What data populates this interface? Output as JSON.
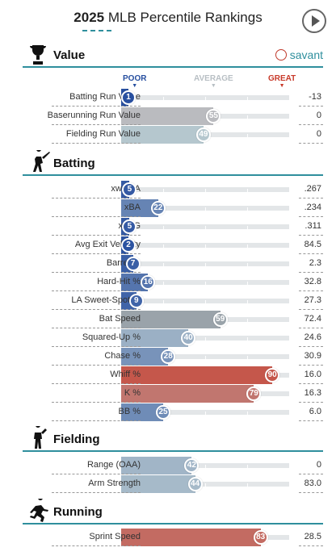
{
  "header": {
    "year": "2025",
    "title": "MLB Percentile Rankings"
  },
  "legend": {
    "poor": "POOR",
    "average": "AVERAGE",
    "great": "GREAT"
  },
  "brand": {
    "name": "savant"
  },
  "colors": {
    "accent": "#2f8f9d",
    "poor": "#264e9f",
    "average": "#9aa3aa",
    "great": "#c83a2a"
  },
  "sections": [
    {
      "key": "value",
      "title": "Value",
      "icon": "trophy-icon",
      "rows": [
        {
          "label": "Batting Run Value",
          "percentile": 1,
          "value": "-13"
        },
        {
          "label": "Baserunning Run Value",
          "percentile": 55,
          "value": "0"
        },
        {
          "label": "Fielding Run Value",
          "percentile": 49,
          "value": "0"
        }
      ]
    },
    {
      "key": "batting",
      "title": "Batting",
      "icon": "batter-icon",
      "rows": [
        {
          "label": "xwOBA",
          "percentile": 5,
          "value": ".267"
        },
        {
          "label": "xBA",
          "percentile": 22,
          "value": ".234"
        },
        {
          "label": "xSLG",
          "percentile": 5,
          "value": ".311"
        },
        {
          "label": "Avg Exit Velocity",
          "percentile": 2,
          "value": "84.5"
        },
        {
          "label": "Barrel %",
          "percentile": 7,
          "value": "2.3"
        },
        {
          "label": "Hard-Hit %",
          "percentile": 16,
          "value": "32.8"
        },
        {
          "label": "LA Sweet-Spot %",
          "percentile": 9,
          "value": "27.3"
        },
        {
          "label": "Bat Speed",
          "percentile": 59,
          "value": "72.4",
          "neutral": true
        },
        {
          "label": "Squared-Up %",
          "percentile": 40,
          "value": "24.6"
        },
        {
          "label": "Chase %",
          "percentile": 28,
          "value": "30.9"
        },
        {
          "label": "Whiff %",
          "percentile": 90,
          "value": "16.0"
        },
        {
          "label": "K %",
          "percentile": 79,
          "value": "16.3"
        },
        {
          "label": "BB %",
          "percentile": 25,
          "value": "6.0"
        }
      ]
    },
    {
      "key": "fielding",
      "title": "Fielding",
      "icon": "fielder-icon",
      "rows": [
        {
          "label": "Range (OAA)",
          "percentile": 42,
          "value": "0"
        },
        {
          "label": "Arm Strength",
          "percentile": 44,
          "value": "83.0"
        }
      ]
    },
    {
      "key": "running",
      "title": "Running",
      "icon": "runner-icon",
      "rows": [
        {
          "label": "Sprint Speed",
          "percentile": 83,
          "value": "28.5"
        }
      ]
    }
  ]
}
